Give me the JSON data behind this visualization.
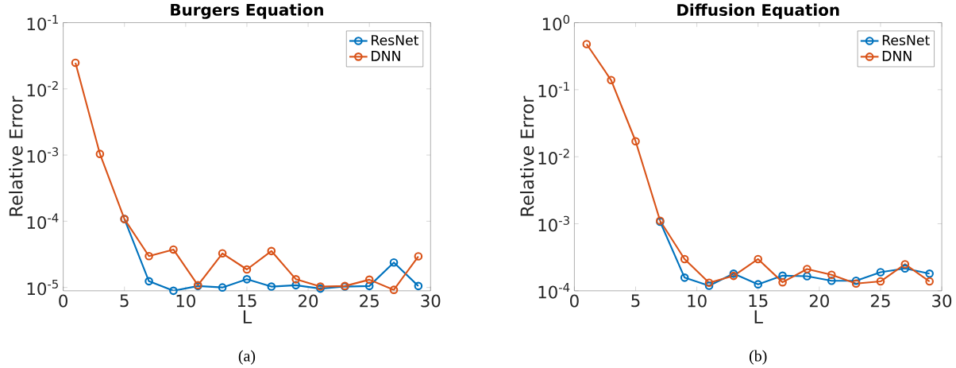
{
  "chart_data": [
    {
      "type": "line",
      "title": "Burgers Equation",
      "xlabel": "L",
      "ylabel": "Relative Error",
      "annotations": [
        "(a)"
      ],
      "x": [
        1,
        3,
        5,
        7,
        9,
        11,
        13,
        15,
        17,
        19,
        21,
        23,
        25,
        27,
        29
      ],
      "series": [
        {
          "name": "ResNet",
          "color": "#0072bd",
          "values": [
            null,
            null,
            0.000108,
            1.24e-05,
            8.9e-06,
            1.05e-05,
            1e-05,
            1.33e-05,
            1.03e-05,
            1.08e-05,
            9.6e-06,
            1.03e-05,
            1.05e-05,
            2.38e-05,
            1.05e-05
          ]
        },
        {
          "name": "DNN",
          "color": "#d95319",
          "values": [
            0.0248,
            0.00104,
            0.000108,
            2.97e-05,
            3.74e-05,
            1.08e-05,
            3.27e-05,
            1.87e-05,
            3.55e-05,
            1.33e-05,
            1.03e-05,
            1.05e-05,
            1.31e-05,
            9.2e-06,
            2.95e-05
          ]
        }
      ],
      "xlim": [
        0,
        30
      ],
      "xticks": [
        0,
        5,
        10,
        15,
        20,
        25,
        30
      ],
      "ylim": [
        8.9e-06,
        0.1
      ],
      "yticks": [
        {
          "value": 1e-05,
          "label": "10$^{-5}$"
        },
        {
          "value": 0.0001,
          "label": "10$^{-4}$"
        },
        {
          "value": 0.001,
          "label": "10$^{-3}$"
        },
        {
          "value": 0.01,
          "label": "10$^{-2}$"
        },
        {
          "value": 0.1,
          "label": "10$^{-1}$"
        }
      ],
      "log": "y",
      "grid": false,
      "legend": "top right",
      "marker": "circle",
      "line_style": "solid"
    },
    {
      "type": "line",
      "title": "Diffusion Equation",
      "xlabel": "L",
      "ylabel": "Relative Error",
      "annotations": [
        "(b)"
      ],
      "x": [
        1,
        3,
        5,
        7,
        9,
        11,
        13,
        15,
        17,
        19,
        21,
        23,
        25,
        27,
        29
      ],
      "series": [
        {
          "name": "ResNet",
          "color": "#0072bd",
          "values": [
            null,
            null,
            null,
            0.00107,
            0.000157,
            0.000119,
            0.00018,
            0.000125,
            0.000168,
            0.000165,
            0.000141,
            0.000141,
            0.000189,
            0.000215,
            0.00018
          ]
        },
        {
          "name": "DNN",
          "color": "#d95319",
          "values": [
            0.479,
            0.139,
            0.017,
            0.00111,
            0.000297,
            0.000132,
            0.000167,
            0.000297,
            0.000134,
            0.000211,
            0.000173,
            0.000128,
            0.000138,
            0.000249,
            0.000138
          ]
        }
      ],
      "xlim": [
        0,
        30
      ],
      "xticks": [
        0,
        5,
        10,
        15,
        20,
        25,
        30
      ],
      "ylim": [
        0.0001,
        1
      ],
      "yticks": [
        {
          "value": 0.0001,
          "label": "10$^{-4}$"
        },
        {
          "value": 0.001,
          "label": "10$^{-3}$"
        },
        {
          "value": 0.01,
          "label": "10$^{-2}$"
        },
        {
          "value": 0.1,
          "label": "10$^{-1}$"
        },
        {
          "value": 1,
          "label": "10$^{0}$"
        }
      ],
      "log": "y",
      "grid": false,
      "legend": "top right",
      "marker": "circle",
      "line_style": "solid"
    }
  ]
}
